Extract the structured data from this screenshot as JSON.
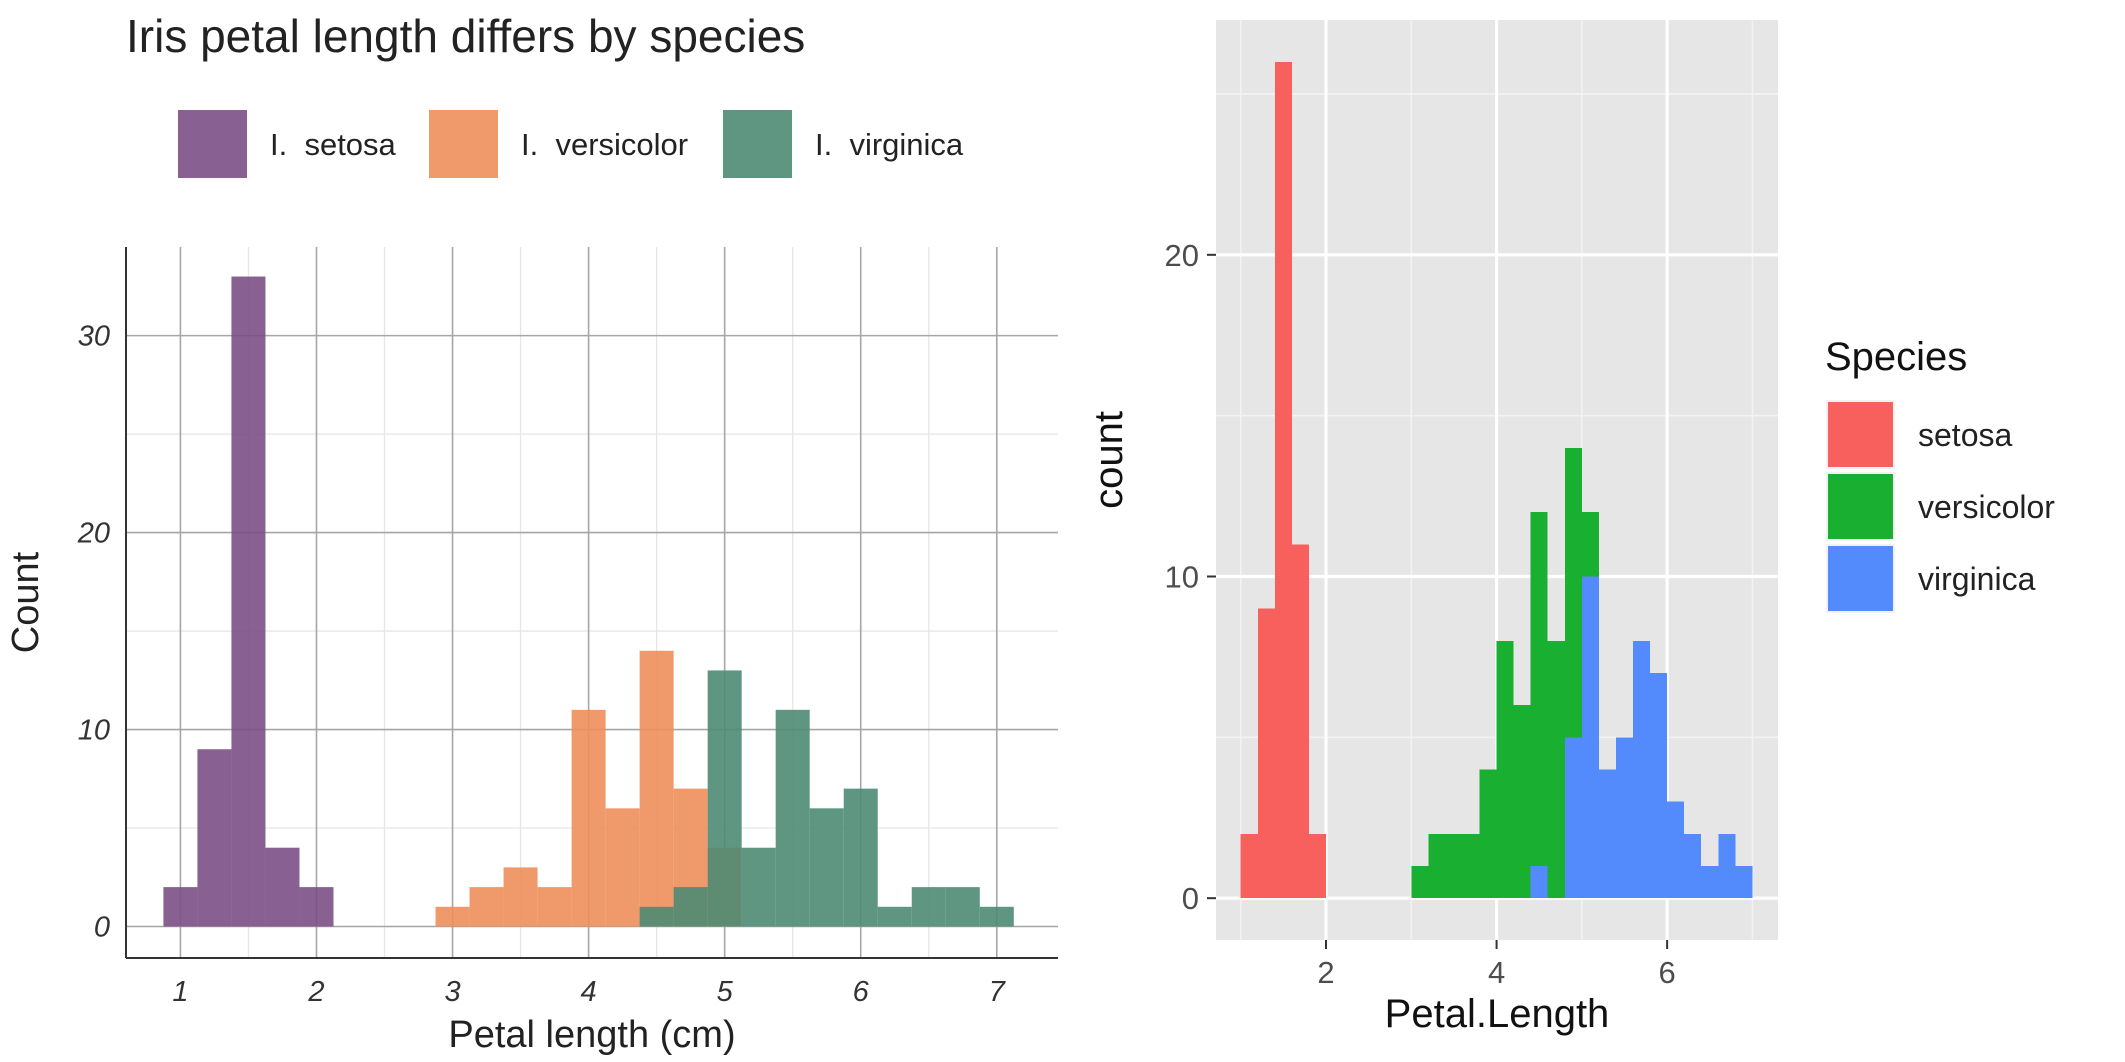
{
  "chart_data": [
    {
      "type": "bar",
      "title": "Iris petal length differs by species",
      "xlabel": "Petal length (cm)",
      "ylabel": "Count",
      "xlim": [
        0.6,
        7.45
      ],
      "ylim": [
        -1.6,
        34.5
      ],
      "bin_width": 0.25,
      "x_ticks": [
        "1",
        "2",
        "3",
        "4",
        "5",
        "6",
        "7"
      ],
      "y_ticks": [
        "0",
        "10",
        "20",
        "30"
      ],
      "grid": true,
      "legend_position": "top",
      "overlap": "identity",
      "series": [
        {
          "name": "I.  setosa",
          "color": "#7b4f86",
          "bins": [
            [
              1.0,
              2
            ],
            [
              1.25,
              9
            ],
            [
              1.5,
              33
            ],
            [
              1.75,
              4
            ],
            [
              2.0,
              2
            ]
          ]
        },
        {
          "name": "I.  versicolor",
          "color": "#ee8f5c",
          "bins": [
            [
              3.0,
              1
            ],
            [
              3.25,
              2
            ],
            [
              3.5,
              3
            ],
            [
              3.75,
              2
            ],
            [
              4.0,
              11
            ],
            [
              4.25,
              6
            ],
            [
              4.5,
              14
            ],
            [
              4.75,
              7
            ],
            [
              5.0,
              4
            ]
          ]
        },
        {
          "name": "I.  virginica",
          "color": "#4c8b74",
          "bins": [
            [
              4.5,
              1
            ],
            [
              4.75,
              2
            ],
            [
              5.0,
              13
            ],
            [
              5.25,
              4
            ],
            [
              5.5,
              11
            ],
            [
              5.75,
              6
            ],
            [
              6.0,
              7
            ],
            [
              6.25,
              1
            ],
            [
              6.5,
              2
            ],
            [
              6.75,
              2
            ],
            [
              7.0,
              1
            ]
          ]
        }
      ]
    },
    {
      "type": "bar",
      "title": "",
      "xlabel": "Petal.Length",
      "ylabel": "count",
      "xlim": [
        0.71,
        7.3
      ],
      "ylim": [
        -1.3,
        27.3
      ],
      "bin_width": 0.2,
      "x_ticks": [
        "2",
        "4",
        "6"
      ],
      "y_ticks": [
        "0",
        "10",
        "20"
      ],
      "grid": true,
      "legend_title": "Species",
      "legend_position": "right",
      "overlap": "stack",
      "series": [
        {
          "name": "setosa",
          "color": "#f8605e",
          "bins": [
            [
              1.1,
              2
            ],
            [
              1.3,
              9
            ],
            [
              1.5,
              26
            ],
            [
              1.7,
              11
            ],
            [
              1.9,
              2
            ]
          ]
        },
        {
          "name": "versicolor",
          "color": "#19b032",
          "bins": [
            [
              3.1,
              1
            ],
            [
              3.3,
              2
            ],
            [
              3.5,
              2
            ],
            [
              3.7,
              2
            ],
            [
              3.9,
              4
            ],
            [
              4.1,
              8
            ],
            [
              4.3,
              6
            ],
            [
              4.5,
              11
            ],
            [
              4.7,
              8
            ],
            [
              4.9,
              9
            ],
            [
              5.1,
              2
            ]
          ]
        },
        {
          "name": "virginica",
          "color": "#538bfc",
          "bins": [
            [
              4.5,
              1
            ],
            [
              4.9,
              5
            ],
            [
              5.1,
              10
            ],
            [
              5.3,
              4
            ],
            [
              5.5,
              5
            ],
            [
              5.7,
              8
            ],
            [
              5.9,
              7
            ],
            [
              6.1,
              3
            ],
            [
              6.3,
              2
            ],
            [
              6.5,
              1
            ],
            [
              6.7,
              2
            ],
            [
              6.9,
              1
            ]
          ]
        }
      ]
    }
  ]
}
